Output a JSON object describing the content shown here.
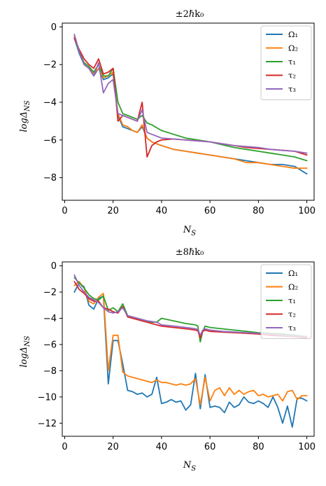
{
  "chart_data": [
    {
      "type": "line",
      "title": "±2ℏk₀",
      "xlabel": "N_S",
      "ylabel": "logΔ_{N_S}",
      "xlim": [
        -1,
        103
      ],
      "ylim": [
        -9.2,
        0.2
      ],
      "xticks": [
        0,
        20,
        40,
        60,
        80,
        100
      ],
      "yticks": [
        0,
        -2,
        -4,
        -6,
        -8
      ],
      "xtick_labels": [
        "0",
        "20",
        "40",
        "60",
        "80",
        "100"
      ],
      "ytick_labels": [
        "0",
        "−2",
        "−4",
        "−6",
        "−8"
      ],
      "legend_position": "top-right",
      "series": [
        {
          "name": "Ω₁",
          "color": "#1f77b4",
          "x": [
            4,
            6,
            8,
            10,
            12,
            14,
            16,
            18,
            20,
            22,
            24,
            26,
            28,
            30,
            32,
            34,
            36,
            38,
            40,
            45,
            50,
            55,
            60,
            65,
            70,
            75,
            80,
            85,
            90,
            95,
            100
          ],
          "y": [
            -0.6,
            -1.4,
            -2.0,
            -2.2,
            -2.6,
            -2.2,
            -2.8,
            -2.7,
            -2.5,
            -4.7,
            -5.3,
            -5.4,
            -5.5,
            -5.6,
            -5.3,
            -5.9,
            -6.1,
            -6.2,
            -6.3,
            -6.5,
            -6.6,
            -6.7,
            -6.8,
            -6.9,
            -7.0,
            -7.1,
            -7.2,
            -7.3,
            -7.3,
            -7.4,
            -7.8
          ]
        },
        {
          "name": "Ω₂",
          "color": "#ff7f0e",
          "x": [
            4,
            6,
            8,
            10,
            12,
            14,
            16,
            18,
            20,
            22,
            24,
            26,
            28,
            30,
            32,
            34,
            36,
            38,
            40,
            45,
            50,
            55,
            60,
            65,
            70,
            75,
            80,
            85,
            90,
            95,
            100
          ],
          "y": [
            -0.5,
            -1.3,
            -1.9,
            -2.1,
            -2.5,
            -2.2,
            -2.7,
            -2.6,
            -2.4,
            -4.6,
            -5.2,
            -5.3,
            -5.5,
            -5.6,
            -5.2,
            -5.9,
            -6.1,
            -6.2,
            -6.3,
            -6.5,
            -6.6,
            -6.7,
            -6.8,
            -6.9,
            -7.0,
            -7.2,
            -7.2,
            -7.3,
            -7.4,
            -7.5,
            -7.5
          ]
        },
        {
          "name": "τ₁",
          "color": "#2ca02c",
          "x": [
            4,
            6,
            8,
            10,
            12,
            14,
            16,
            18,
            20,
            22,
            24,
            26,
            28,
            30,
            32,
            34,
            36,
            38,
            40,
            45,
            50,
            55,
            60,
            65,
            70,
            75,
            80,
            85,
            90,
            95,
            100
          ],
          "y": [
            -0.6,
            -1.3,
            -1.9,
            -2.1,
            -2.4,
            -2.0,
            -2.6,
            -2.6,
            -2.2,
            -4.0,
            -4.6,
            -4.7,
            -4.8,
            -4.9,
            -4.7,
            -5.1,
            -5.2,
            -5.35,
            -5.5,
            -5.7,
            -5.9,
            -6.0,
            -6.1,
            -6.25,
            -6.4,
            -6.5,
            -6.6,
            -6.7,
            -6.8,
            -6.9,
            -7.1
          ]
        },
        {
          "name": "τ₂",
          "color": "#d62728",
          "x": [
            4,
            6,
            8,
            10,
            12,
            14,
            16,
            18,
            20,
            22,
            24,
            26,
            28,
            30,
            32,
            34,
            36,
            38,
            40,
            45,
            50,
            55,
            60,
            65,
            70,
            75,
            80,
            85,
            90,
            95,
            100
          ],
          "y": [
            -0.6,
            -1.2,
            -1.7,
            -2.0,
            -2.2,
            -1.7,
            -2.5,
            -2.4,
            -2.2,
            -5.0,
            -4.7,
            -4.8,
            -4.9,
            -5.0,
            -4.0,
            -6.9,
            -6.3,
            -6.1,
            -6.0,
            -5.95,
            -6.0,
            -6.05,
            -6.1,
            -6.2,
            -6.3,
            -6.4,
            -6.45,
            -6.5,
            -6.55,
            -6.6,
            -6.8
          ]
        },
        {
          "name": "τ₃",
          "color": "#9467bd",
          "x": [
            4,
            6,
            8,
            10,
            12,
            14,
            16,
            18,
            20,
            22,
            24,
            26,
            28,
            30,
            32,
            34,
            36,
            38,
            40,
            45,
            50,
            55,
            60,
            65,
            70,
            75,
            80,
            85,
            90,
            95,
            100
          ],
          "y": [
            -0.4,
            -1.3,
            -2.0,
            -2.2,
            -2.6,
            -1.9,
            -3.5,
            -3.0,
            -2.8,
            -4.6,
            -4.7,
            -4.8,
            -4.9,
            -5.0,
            -4.4,
            -5.6,
            -5.7,
            -5.8,
            -5.9,
            -5.95,
            -6.0,
            -6.05,
            -6.1,
            -6.2,
            -6.3,
            -6.35,
            -6.4,
            -6.5,
            -6.55,
            -6.6,
            -6.7
          ]
        }
      ]
    },
    {
      "type": "line",
      "title": "±8ℏk₀",
      "xlabel": "N_S",
      "ylabel": "logΔ_{N_S}",
      "xlim": [
        -1,
        103
      ],
      "ylim": [
        -13.0,
        0.3
      ],
      "xticks": [
        0,
        20,
        40,
        60,
        80,
        100
      ],
      "yticks": [
        0,
        -2,
        -4,
        -6,
        -8,
        -10,
        -12
      ],
      "xtick_labels": [
        "0",
        "20",
        "40",
        "60",
        "80",
        "100"
      ],
      "ytick_labels": [
        "0",
        "−2",
        "−4",
        "−6",
        "−8",
        "−10",
        "−12"
      ],
      "legend_position": "top-right",
      "series": [
        {
          "name": "Ω₁",
          "color": "#1f77b4",
          "x": [
            4,
            6,
            8,
            10,
            12,
            14,
            16,
            18,
            20,
            22,
            24,
            26,
            28,
            30,
            32,
            34,
            36,
            38,
            40,
            42,
            44,
            46,
            48,
            50,
            52,
            54,
            56,
            58,
            60,
            62,
            64,
            66,
            68,
            70,
            72,
            74,
            76,
            78,
            80,
            82,
            84,
            86,
            88,
            90,
            92,
            94,
            96,
            98,
            100
          ],
          "y": [
            -2.0,
            -1.3,
            -1.6,
            -3.0,
            -3.3,
            -2.5,
            -2.3,
            -9.0,
            -5.7,
            -5.7,
            -7.5,
            -9.5,
            -9.6,
            -9.8,
            -9.7,
            -10.0,
            -9.8,
            -8.5,
            -10.5,
            -10.4,
            -10.2,
            -10.4,
            -10.3,
            -11.0,
            -10.6,
            -8.2,
            -10.9,
            -8.3,
            -10.8,
            -10.7,
            -10.8,
            -11.2,
            -10.4,
            -10.8,
            -10.6,
            -10.0,
            -10.4,
            -10.5,
            -10.3,
            -10.5,
            -10.8,
            -10.0,
            -10.8,
            -12.0,
            -10.7,
            -12.3,
            -10.1,
            -10.1,
            -10.3
          ]
        },
        {
          "name": "Ω₂",
          "color": "#ff7f0e",
          "x": [
            4,
            6,
            8,
            10,
            12,
            14,
            16,
            18,
            20,
            22,
            24,
            26,
            28,
            30,
            32,
            34,
            36,
            38,
            40,
            42,
            44,
            46,
            48,
            50,
            52,
            54,
            56,
            58,
            60,
            62,
            64,
            66,
            68,
            70,
            72,
            74,
            76,
            78,
            80,
            82,
            84,
            86,
            88,
            90,
            92,
            94,
            96,
            98,
            100
          ],
          "y": [
            -1.5,
            -1.2,
            -1.7,
            -2.7,
            -2.9,
            -2.4,
            -2.1,
            -8.0,
            -5.3,
            -5.3,
            -8.1,
            -8.4,
            -8.5,
            -8.6,
            -8.7,
            -8.8,
            -8.9,
            -8.7,
            -8.9,
            -8.9,
            -9.0,
            -9.1,
            -9.0,
            -9.1,
            -9.0,
            -8.6,
            -10.6,
            -8.5,
            -10.3,
            -9.5,
            -9.3,
            -9.9,
            -9.3,
            -9.8,
            -9.5,
            -9.8,
            -9.6,
            -9.5,
            -9.9,
            -9.8,
            -10.0,
            -9.9,
            -9.8,
            -10.3,
            -9.6,
            -9.5,
            -10.2,
            -9.9,
            -9.9
          ]
        },
        {
          "name": "τ₁",
          "color": "#2ca02c",
          "x": [
            4,
            6,
            8,
            10,
            12,
            14,
            16,
            18,
            20,
            22,
            24,
            26,
            28,
            30,
            32,
            34,
            36,
            38,
            40,
            45,
            50,
            52,
            54,
            55,
            56,
            57,
            58,
            60,
            65,
            70,
            75,
            80,
            85,
            90,
            95,
            100
          ],
          "y": [
            -0.9,
            -1.3,
            -1.7,
            -2.2,
            -2.5,
            -2.6,
            -2.3,
            -3.4,
            -3.2,
            -3.5,
            -2.9,
            -3.8,
            -3.9,
            -4.0,
            -4.1,
            -4.2,
            -4.3,
            -4.3,
            -4.0,
            -4.2,
            -4.4,
            -4.45,
            -4.5,
            -4.6,
            -5.8,
            -5.0,
            -4.6,
            -4.7,
            -4.8,
            -4.9,
            -5.0,
            -5.1,
            -5.15,
            -5.2,
            -5.3,
            -5.4
          ]
        },
        {
          "name": "τ₂",
          "color": "#d62728",
          "x": [
            4,
            6,
            8,
            10,
            12,
            14,
            16,
            18,
            20,
            22,
            24,
            26,
            28,
            30,
            32,
            34,
            36,
            38,
            40,
            45,
            50,
            52,
            54,
            55,
            56,
            57,
            58,
            60,
            65,
            70,
            75,
            80,
            85,
            90,
            95,
            100
          ],
          "y": [
            -1.2,
            -1.8,
            -2.1,
            -2.5,
            -2.7,
            -2.7,
            -3.2,
            -3.3,
            -3.5,
            -3.6,
            -3.1,
            -3.9,
            -4.0,
            -4.1,
            -4.2,
            -4.3,
            -4.4,
            -4.5,
            -4.6,
            -4.7,
            -4.8,
            -4.85,
            -4.9,
            -4.95,
            -5.5,
            -5.0,
            -4.9,
            -5.0,
            -5.05,
            -5.1,
            -5.15,
            -5.2,
            -5.3,
            -5.35,
            -5.4,
            -5.5
          ]
        },
        {
          "name": "τ₃",
          "color": "#9467bd",
          "x": [
            4,
            6,
            8,
            10,
            12,
            14,
            16,
            18,
            20,
            22,
            24,
            26,
            28,
            30,
            32,
            34,
            36,
            38,
            40,
            45,
            50,
            52,
            54,
            55,
            56,
            57,
            58,
            60,
            65,
            70,
            75,
            80,
            85,
            90,
            95,
            100
          ],
          "y": [
            -0.7,
            -1.5,
            -2.0,
            -2.4,
            -2.6,
            -2.8,
            -3.2,
            -3.5,
            -3.6,
            -3.5,
            -3.2,
            -3.8,
            -3.9,
            -4.0,
            -4.1,
            -4.2,
            -4.25,
            -4.3,
            -4.5,
            -4.6,
            -4.7,
            -4.75,
            -4.8,
            -4.85,
            -5.3,
            -4.9,
            -4.8,
            -4.9,
            -5.0,
            -5.05,
            -5.1,
            -5.15,
            -5.2,
            -5.3,
            -5.35,
            -5.4
          ]
        }
      ]
    }
  ]
}
